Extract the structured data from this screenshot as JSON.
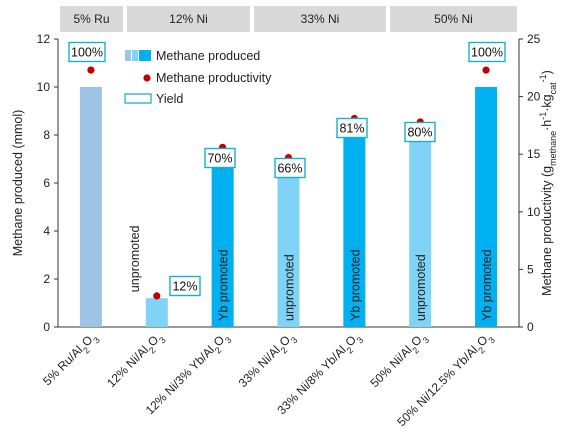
{
  "chart_data": {
    "type": "bar",
    "header_groups": [
      {
        "label": "5% Ru",
        "span": [
          0,
          0
        ]
      },
      {
        "label": "12% Ni",
        "span": [
          1,
          2
        ]
      },
      {
        "label": "33% Ni",
        "span": [
          3,
          4
        ]
      },
      {
        "label": "50% Ni",
        "span": [
          5,
          6
        ]
      }
    ],
    "categories": [
      {
        "main": "5% Ru/Al",
        "sub": "2",
        "tail": "O",
        "sub2": "3"
      },
      {
        "main": "12% Ni/Al",
        "sub": "2",
        "tail": "O",
        "sub2": "3"
      },
      {
        "main": "12% Ni/3% Yb/Al",
        "sub": "2",
        "tail": "O",
        "sub2": "3"
      },
      {
        "main": "33% Ni/Al",
        "sub": "2",
        "tail": "O",
        "sub2": "3"
      },
      {
        "main": "33% Ni/8% Yb/Al",
        "sub": "2",
        "tail": "O",
        "sub2": "3"
      },
      {
        "main": "50% Ni/Al",
        "sub": "2",
        "tail": "O",
        "sub2": "3"
      },
      {
        "main": "50% Ni/12.5% Yb/Al",
        "sub": "2",
        "tail": "O",
        "sub2": "3"
      }
    ],
    "series": [
      {
        "name": "Methane produced",
        "axis": "left",
        "values": [
          10.0,
          1.2,
          7.0,
          6.6,
          8.1,
          8.0,
          10.0
        ]
      },
      {
        "name": "Methane productivity",
        "axis": "right",
        "values": [
          22.3,
          2.7,
          15.6,
          14.7,
          18.1,
          17.8,
          22.3
        ]
      },
      {
        "name": "Yield",
        "labels": [
          "100%",
          "12%",
          "70%",
          "66%",
          "81%",
          "80%",
          "100%"
        ]
      }
    ],
    "bar_labels": [
      "",
      "unpromoted",
      "Yb promoted",
      "unpromoted",
      "Yb promoted",
      "unpromoted",
      "Yb promoted"
    ],
    "bar_colors": [
      "#9dc3e6",
      "#7fd3f7",
      "#00b0f0",
      "#7fd3f7",
      "#00b0f0",
      "#7fd3f7",
      "#00b0f0"
    ],
    "marker_color": "#c00000",
    "yield_box_color": "#1ab0c8",
    "header_bg": "#d9d9d9",
    "ylabel": "Methane produced (mmol)",
    "ylabel_right": {
      "base": "Methane productivity (g",
      "s1": "methane",
      "m1": "·h",
      "p1": "-1",
      "m2": "·kg",
      "s2": "cat",
      "p2": "-1",
      "end": ")"
    },
    "ylim": [
      0,
      12
    ],
    "ylim_right": [
      0,
      25
    ],
    "yticks": [
      0,
      2,
      4,
      6,
      8,
      10,
      12
    ],
    "yticks_right": [
      0,
      5,
      10,
      15,
      20,
      25
    ],
    "legend": {
      "placement": "top-center",
      "entries": [
        "Methane produced",
        "Methane productivity",
        "Yield"
      ]
    },
    "grid": false
  }
}
